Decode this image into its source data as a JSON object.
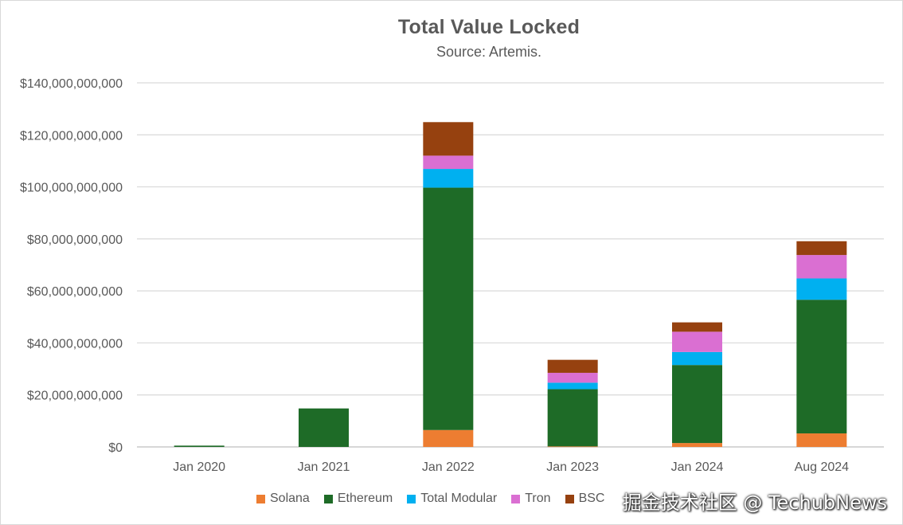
{
  "chart_data": {
    "type": "bar",
    "stacked": true,
    "title": "Total Value Locked",
    "subtitle": "Source: Artemis.",
    "categories": [
      "Jan 2020",
      "Jan 2021",
      "Jan 2022",
      "Jan 2023",
      "Jan 2024",
      "Aug 2024"
    ],
    "ylim": [
      0,
      140000000000
    ],
    "yticks": [
      0,
      20000000000,
      40000000000,
      60000000000,
      80000000000,
      100000000000,
      120000000000,
      140000000000
    ],
    "ytick_labels": [
      "$0",
      "$20,000,000,000",
      "$40,000,000,000",
      "$60,000,000,000",
      "$80,000,000,000",
      "$100,000,000,000",
      "$120,000,000,000",
      "$140,000,000,000"
    ],
    "grid": true,
    "legend_position": "bottom",
    "series": [
      {
        "name": "Solana",
        "color": "#ED7D31",
        "values": [
          0,
          0,
          6500000000,
          200000000,
          1500000000,
          5200000000
        ]
      },
      {
        "name": "Ethereum",
        "color": "#1E6B27",
        "values": [
          500000000,
          14800000000,
          93200000000,
          22000000000,
          30000000000,
          51400000000
        ]
      },
      {
        "name": "Total Modular",
        "color": "#00B0F0",
        "values": [
          0,
          0,
          7200000000,
          2500000000,
          5000000000,
          8200000000
        ]
      },
      {
        "name": "Tron",
        "color": "#DA6FD2",
        "values": [
          0,
          0,
          5100000000,
          3800000000,
          7800000000,
          9000000000
        ]
      },
      {
        "name": "BSC",
        "color": "#96410F",
        "values": [
          0,
          0,
          12900000000,
          5000000000,
          3600000000,
          5300000000
        ]
      }
    ]
  },
  "watermark": "掘金技术社区 @ TechubNews"
}
